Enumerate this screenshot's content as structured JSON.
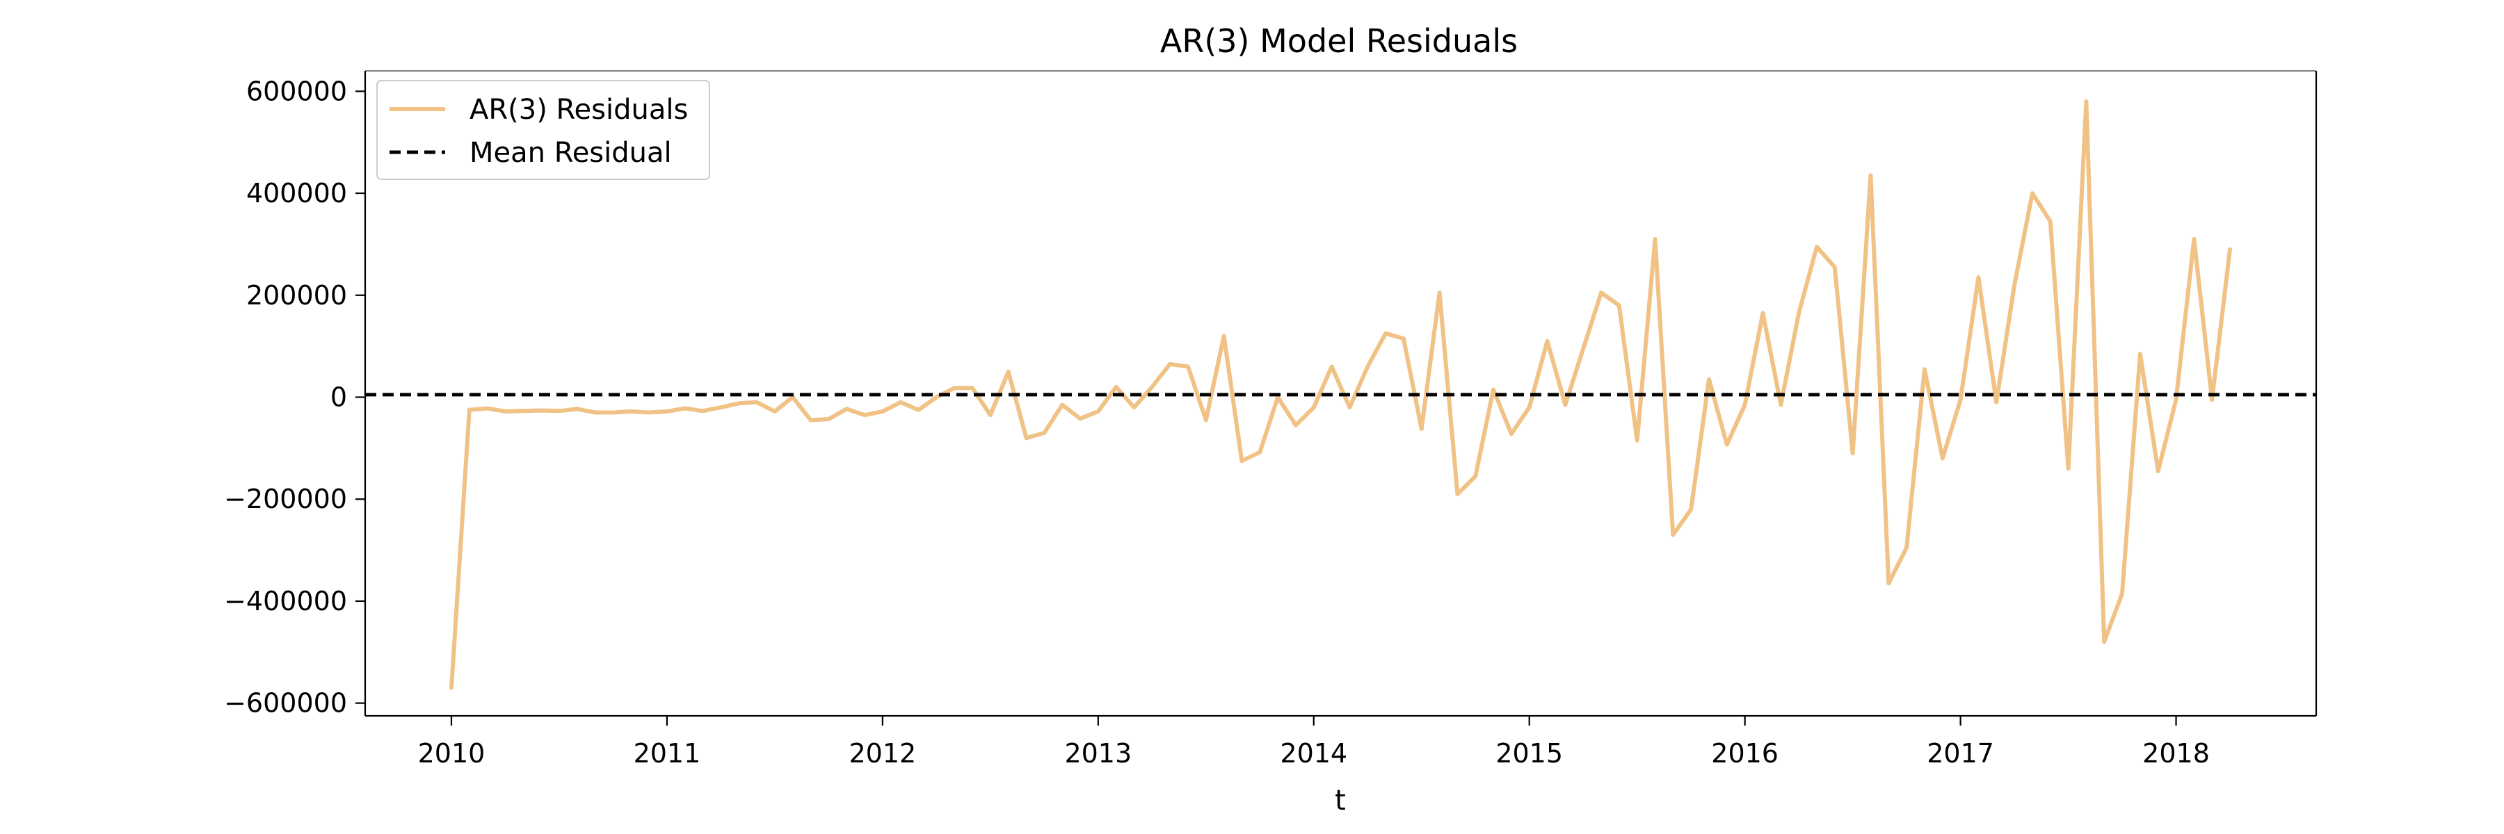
{
  "chart_data": {
    "type": "line",
    "title": "AR(3) Model Residuals",
    "xlabel": "t",
    "ylabel": "",
    "xlim": [
      2009.6,
      2018.65
    ],
    "ylim": [
      -625000,
      640000
    ],
    "x_ticks": [
      2010,
      2011,
      2012,
      2013,
      2014,
      2015,
      2016,
      2017,
      2018
    ],
    "x_tick_labels": [
      "2010",
      "2011",
      "2012",
      "2013",
      "2014",
      "2015",
      "2016",
      "2017",
      "2018"
    ],
    "y_ticks": [
      -600000,
      -400000,
      -200000,
      0,
      200000,
      400000,
      600000
    ],
    "y_tick_labels": [
      "−600000",
      "−400000",
      "−200000",
      "0",
      "200000",
      "400000",
      "600000"
    ],
    "grid": false,
    "legend": {
      "placement": "upper-left",
      "entries": [
        {
          "label": "AR(3) Residuals",
          "style": "solid",
          "color": "#F0C285"
        },
        {
          "label": "Mean Residual",
          "style": "dashed",
          "color": "#000000"
        }
      ]
    },
    "mean_residual": 5000,
    "series": [
      {
        "name": "AR(3) Residuals",
        "color": "#F0C285",
        "x": [
          "2010-01",
          "2010-02",
          "2010-03",
          "2010-04",
          "2010-05",
          "2010-06",
          "2010-07",
          "2010-08",
          "2010-09",
          "2010-10",
          "2010-11",
          "2010-12",
          "2011-01",
          "2011-02",
          "2011-03",
          "2011-04",
          "2011-05",
          "2011-06",
          "2011-07",
          "2011-08",
          "2011-09",
          "2011-10",
          "2011-11",
          "2011-12",
          "2012-01",
          "2012-02",
          "2012-03",
          "2012-04",
          "2012-05",
          "2012-06",
          "2012-07",
          "2012-08",
          "2012-09",
          "2012-10",
          "2012-11",
          "2012-12",
          "2013-01",
          "2013-02",
          "2013-03",
          "2013-04",
          "2013-05",
          "2013-06",
          "2013-07",
          "2013-08",
          "2013-09",
          "2013-10",
          "2013-11",
          "2013-12",
          "2014-01",
          "2014-02",
          "2014-03",
          "2014-04",
          "2014-05",
          "2014-06",
          "2014-07",
          "2014-08",
          "2014-09",
          "2014-10",
          "2014-11",
          "2014-12",
          "2015-01",
          "2015-02",
          "2015-03",
          "2015-04",
          "2015-05",
          "2015-06",
          "2015-07",
          "2015-08",
          "2015-09",
          "2015-10",
          "2015-11",
          "2015-12",
          "2016-01",
          "2016-02",
          "2016-03",
          "2016-04",
          "2016-05",
          "2016-06",
          "2016-07",
          "2016-08",
          "2016-09",
          "2016-10",
          "2016-11",
          "2016-12",
          "2017-01",
          "2017-02",
          "2017-03",
          "2017-04",
          "2017-05",
          "2017-06",
          "2017-07",
          "2017-08",
          "2017-09",
          "2017-10",
          "2017-11",
          "2017-12",
          "2018-01",
          "2018-02",
          "2018-03",
          "2018-04"
        ],
        "values": [
          -570000,
          -25000,
          -22000,
          -28000,
          -27000,
          -26000,
          -27000,
          -23000,
          -30000,
          -30000,
          -28000,
          -30000,
          -28000,
          -22000,
          -27000,
          -20000,
          -12000,
          -10000,
          -28000,
          0,
          -45000,
          -43000,
          -23000,
          -35000,
          -28000,
          -10000,
          -25000,
          0,
          18000,
          18000,
          -35000,
          50000,
          -80000,
          -70000,
          -15000,
          -42000,
          -28000,
          20000,
          -20000,
          20000,
          65000,
          60000,
          -45000,
          120000,
          -125000,
          -108000,
          0,
          -55000,
          -20000,
          60000,
          -20000,
          60000,
          125000,
          115000,
          -62000,
          205000,
          -190000,
          -155000,
          15000,
          -72000,
          -20000,
          110000,
          -15000,
          95000,
          205000,
          180000,
          -85000,
          310000,
          -270000,
          -220000,
          35000,
          -93000,
          -15000,
          165000,
          -15000,
          165000,
          295000,
          255000,
          -110000,
          435000,
          -365000,
          -295000,
          55000,
          -120000,
          -5000,
          235000,
          -10000,
          220000,
          400000,
          345000,
          -140000,
          580000,
          -480000,
          -385000,
          85000,
          -145000,
          -5000,
          310000,
          -5000,
          290000
        ]
      }
    ]
  }
}
